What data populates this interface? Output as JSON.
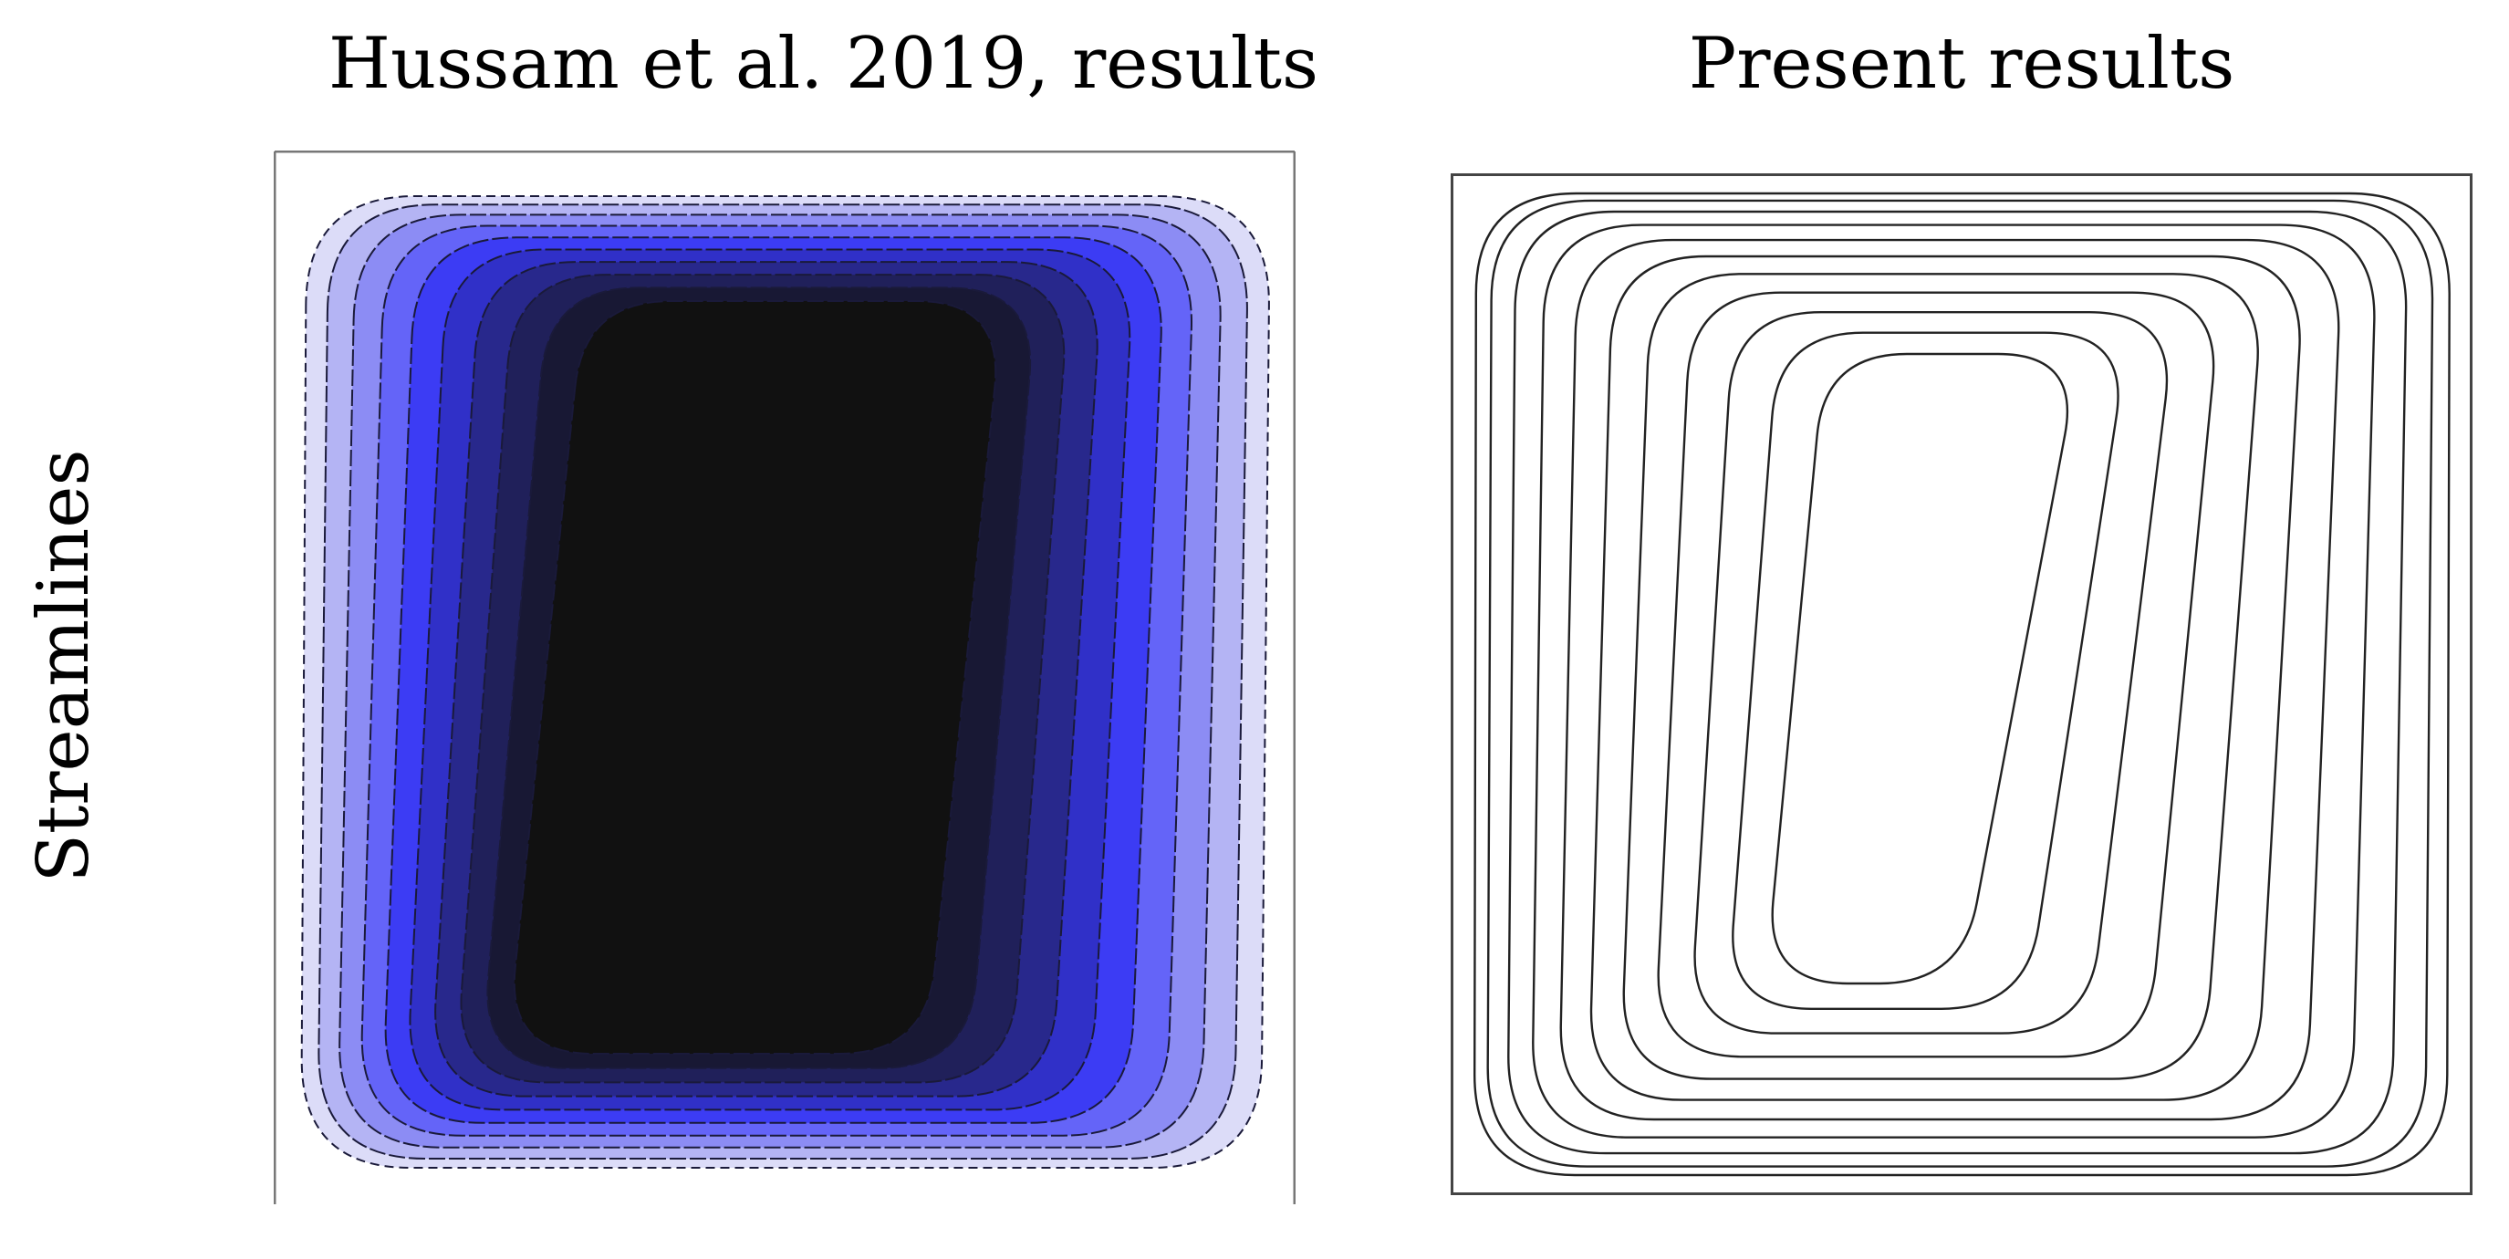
{
  "figure": {
    "left_panel": {
      "title": "Hussam et al. 2019, results",
      "fill_colors": [
        "#dcdcf8",
        "#b4b4f4",
        "#8c8cf4",
        "#6464f8",
        "#3c3cf4",
        "#3030c8",
        "#28288c",
        "#20205a",
        "#181834",
        "#111111"
      ]
    },
    "right_panel": {
      "title": "Present results",
      "line_color": "#222222"
    },
    "row_label": "Streamlines"
  }
}
